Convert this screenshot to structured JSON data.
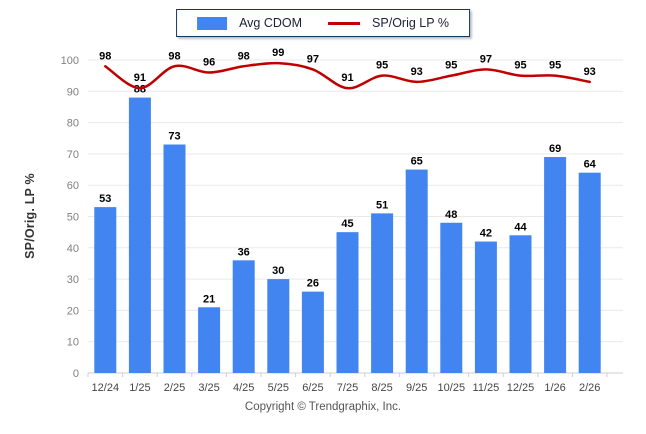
{
  "chart_data": {
    "type": "combo",
    "categories": [
      "12/24",
      "1/25",
      "2/25",
      "3/25",
      "4/25",
      "5/25",
      "6/25",
      "7/25",
      "8/25",
      "9/25",
      "10/25",
      "11/25",
      "12/25",
      "1/26",
      "2/26"
    ],
    "series": [
      {
        "name": "Avg CDOM",
        "type": "bar",
        "color": "#4385f0",
        "values": [
          53,
          88,
          73,
          21,
          36,
          30,
          26,
          45,
          51,
          65,
          48,
          42,
          44,
          69,
          64
        ]
      },
      {
        "name": "SP/Orig LP %",
        "type": "line",
        "color": "#c00000",
        "values": [
          98,
          91,
          98,
          96,
          98,
          99,
          97,
          91,
          95,
          93,
          95,
          97,
          95,
          95,
          93
        ]
      }
    ],
    "title": "",
    "xlabel": "",
    "ylabel": "SP/Orig. LP %",
    "ylim": [
      0,
      100
    ],
    "ytick_step": 10,
    "grid": true,
    "legend_position": "top",
    "value_labels": true,
    "colors": {
      "grid": "#e9e9e9",
      "axis": "#cfcfcf",
      "y_tick_text": "#808080",
      "x_tick_text": "#454545",
      "value_label_text": "#000000"
    }
  },
  "footer": {
    "copyright": "Copyright © Trendgraphix, Inc."
  }
}
